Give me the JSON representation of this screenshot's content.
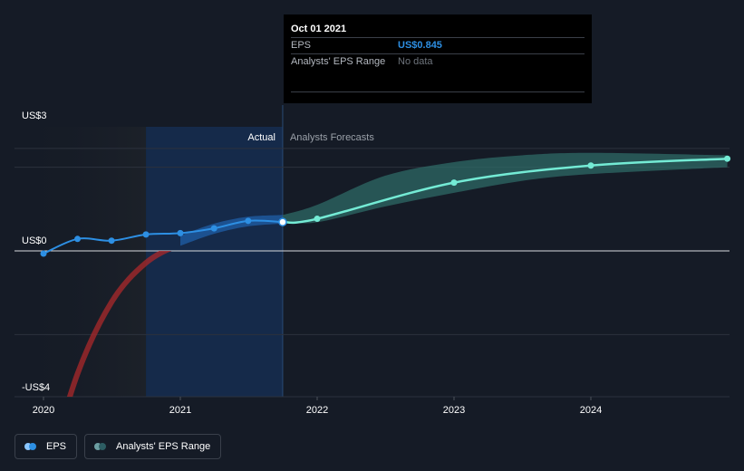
{
  "chart_data": {
    "type": "line",
    "y_axis": {
      "ticks": [
        {
          "label": "US$3",
          "value": 3
        },
        {
          "label": "US$0",
          "value": 0
        },
        {
          "label": "-US$4",
          "value": -4
        }
      ],
      "ylim": [
        -4,
        3
      ]
    },
    "x_axis": {
      "ticks": [
        "2020",
        "2021",
        "2022",
        "2023",
        "2024"
      ],
      "xlim": [
        "2019-10-01",
        "2024-12-31"
      ]
    },
    "regions": {
      "actual_label": "Actual",
      "forecast_label": "Analysts Forecasts",
      "split_date": "2021-10-01"
    },
    "series": [
      {
        "name": "EPS",
        "points": [
          {
            "x": "2020-01-01",
            "y": -0.08
          },
          {
            "x": "2020-04-01",
            "y": 0.35
          },
          {
            "x": "2020-07-01",
            "y": 0.3
          },
          {
            "x": "2020-10-01",
            "y": 0.48
          },
          {
            "x": "2021-01-01",
            "y": 0.52
          },
          {
            "x": "2021-04-01",
            "y": 0.66
          },
          {
            "x": "2021-07-01",
            "y": 0.88
          },
          {
            "x": "2021-10-01",
            "y": 0.845
          }
        ]
      },
      {
        "name": "EPS forecast",
        "points": [
          {
            "x": "2021-10-01",
            "y": 0.845
          },
          {
            "x": "2022-01-01",
            "y": 0.94
          },
          {
            "x": "2023-01-01",
            "y": 2.0
          },
          {
            "x": "2024-01-01",
            "y": 2.5
          },
          {
            "x": "2024-12-31",
            "y": 2.7
          }
        ]
      },
      {
        "name": "Analysts' EPS Range",
        "high": [
          {
            "x": "2021-10-01",
            "y": 1.05
          },
          {
            "x": "2022-01-01",
            "y": 1.35
          },
          {
            "x": "2022-07-01",
            "y": 2.2
          },
          {
            "x": "2023-01-01",
            "y": 2.6
          },
          {
            "x": "2023-07-01",
            "y": 2.8
          },
          {
            "x": "2024-01-01",
            "y": 2.87
          },
          {
            "x": "2024-12-31",
            "y": 2.8
          }
        ],
        "low": [
          {
            "x": "2021-10-01",
            "y": 0.845
          },
          {
            "x": "2022-01-01",
            "y": 0.84
          },
          {
            "x": "2022-07-01",
            "y": 1.3
          },
          {
            "x": "2023-01-01",
            "y": 1.7
          },
          {
            "x": "2023-07-01",
            "y": 2.05
          },
          {
            "x": "2024-01-01",
            "y": 2.25
          },
          {
            "x": "2024-12-31",
            "y": 2.45
          }
        ]
      },
      {
        "name": "Past EPS trend",
        "points": [
          {
            "x": "2019-12-31",
            "y": -6.9
          },
          {
            "x": "2020-04-01",
            "y": -3.6
          },
          {
            "x": "2020-07-01",
            "y": -1.5
          },
          {
            "x": "2020-10-01",
            "y": -0.35
          },
          {
            "x": "2021-01-01",
            "y": 0.2
          },
          {
            "x": "2021-04-01",
            "y": 0.55
          },
          {
            "x": "2021-10-01",
            "y": 0.845
          }
        ],
        "high": [
          {
            "x": "2021-01-01",
            "y": 0.45
          },
          {
            "x": "2021-04-01",
            "y": 0.8
          },
          {
            "x": "2021-07-01",
            "y": 1.0
          },
          {
            "x": "2021-10-01",
            "y": 1.05
          }
        ],
        "low": [
          {
            "x": "2021-01-01",
            "y": 0.15
          },
          {
            "x": "2021-04-01",
            "y": 0.5
          },
          {
            "x": "2021-07-01",
            "y": 0.72
          },
          {
            "x": "2021-10-01",
            "y": 0.8
          }
        ]
      }
    ],
    "colors": {
      "eps": "#2d8fe3",
      "forecast": "#74ebd5",
      "range": "#2f6e6a",
      "negative": "#a3282b",
      "actual_band": "#152a4a",
      "grid": "#2c323d",
      "zero_line": "#d7d9dd"
    },
    "legend": [
      "EPS",
      "Analysts' EPS Range"
    ]
  },
  "tooltip": {
    "date": "Oct 01 2021",
    "eps_label": "EPS",
    "eps_value": "US$0.845",
    "range_label": "Analysts' EPS Range",
    "range_value": "No data"
  },
  "legend": {
    "eps_label": "EPS",
    "eps_color_light": "#8cc7ff",
    "eps_color": "#2d8fe3",
    "range_label": "Analysts' EPS Range",
    "range_color_light": "#6d9fa3",
    "range_color": "#2d5d63"
  }
}
